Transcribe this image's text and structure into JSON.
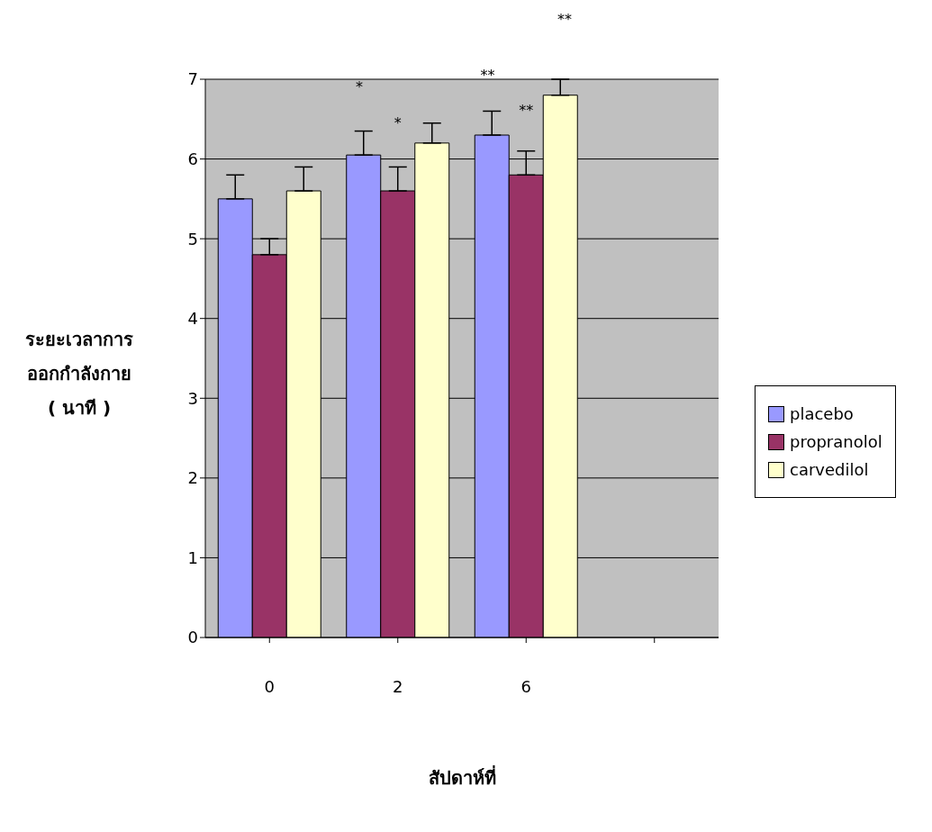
{
  "chart_data": {
    "type": "bar",
    "xlabel": "สัปดาห์ที่",
    "ylabel": "ระยะเวลาการ\nออกกำลังกาย\n( นาที )",
    "categories": [
      "0",
      "2",
      "6",
      null
    ],
    "series": [
      {
        "name": "placebo",
        "color": "#9999ff",
        "values": [
          5.5,
          6.05,
          6.3,
          null
        ],
        "errors": [
          [
            5.5,
            5.8
          ],
          [
            6.05,
            6.35
          ],
          [
            6.3,
            6.6
          ],
          null
        ]
      },
      {
        "name": "propranolol",
        "color": "#993366",
        "values": [
          4.8,
          5.6,
          5.8,
          null
        ],
        "errors": [
          [
            4.8,
            5.0
          ],
          [
            5.6,
            5.9
          ],
          [
            5.8,
            6.1
          ],
          null
        ]
      },
      {
        "name": "carvedilol",
        "color": "#ffffcc",
        "values": [
          5.6,
          6.2,
          6.8,
          null
        ],
        "errors": [
          [
            5.6,
            5.9
          ],
          [
            6.2,
            6.45
          ],
          [
            6.8,
            7.0
          ],
          null
        ]
      }
    ],
    "annotations": [
      "*",
      "*",
      "**",
      "**",
      "**"
    ],
    "ylim": [
      0,
      7
    ],
    "yticks": [
      0,
      1,
      2,
      3,
      4,
      5,
      6,
      7
    ],
    "grid": "y",
    "legend": "right"
  }
}
